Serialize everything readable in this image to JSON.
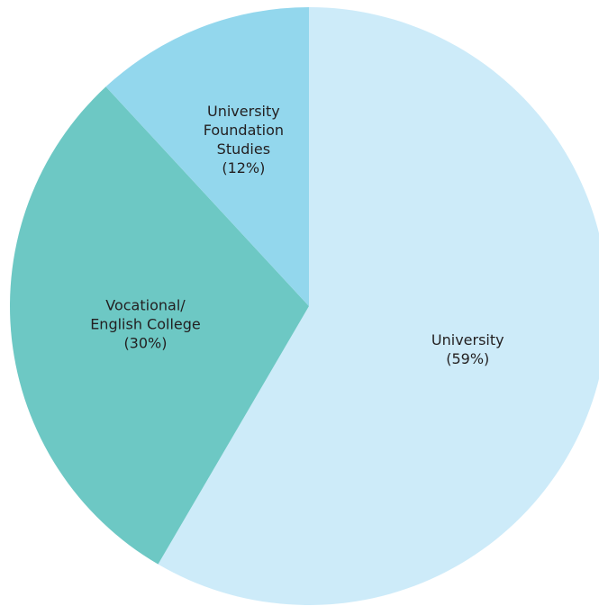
{
  "chart_data": {
    "type": "pie",
    "categories": [
      "University",
      "Vocational/\nEnglish College",
      "University\nFoundation\nStudies"
    ],
    "values": [
      59,
      30,
      12
    ],
    "value_labels": [
      "(59%)",
      "(30%)",
      "(12%)"
    ],
    "colors": [
      "#cdebf9",
      "#6dc8c4",
      "#93d7ed"
    ]
  }
}
